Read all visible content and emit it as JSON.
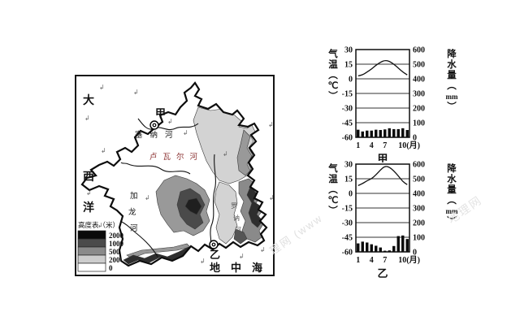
{
  "map": {
    "ocean_chars": [
      "大",
      "西",
      "洋"
    ],
    "sea_label": "地中海",
    "cities": {
      "jia": "甲",
      "yi": "乙"
    },
    "rivers": {
      "seine": "塞纳河",
      "loire": "卢瓦尔河",
      "loire_color": "#8b3232",
      "garonne_chars": [
        "加",
        "龙",
        "河"
      ],
      "rhone_chars": [
        "罗",
        "讷",
        "河"
      ]
    },
    "legend": {
      "title": "高度表（米）",
      "entries": [
        {
          "label": "2000",
          "color": "#0a0a0a"
        },
        {
          "label": "1000",
          "color": "#4a4a4a"
        },
        {
          "label": "500",
          "color": "#8a8a8a"
        },
        {
          "label": "200",
          "color": "#cdcdcd"
        },
        {
          "label": "0",
          "color": "#ffffff"
        }
      ]
    },
    "wave_mark": "↲"
  },
  "watermark": {
    "frag1": "理网 (www",
    "frag2": "地理网"
  },
  "chart_data": [
    {
      "type": "line+bar",
      "title": "甲",
      "temp_axis_label_chars": [
        "气",
        "温",
        "︵",
        "℃",
        "︶"
      ],
      "precip_axis_label_chars": [
        "降",
        "水",
        "量",
        "︵",
        "mm",
        "︶"
      ],
      "temp_ticks": [
        30,
        15,
        0,
        -15,
        -30,
        -45,
        -60
      ],
      "precip_ticks": [
        600,
        500,
        400,
        300,
        200,
        100,
        0
      ],
      "temp_range": [
        -60,
        30
      ],
      "precip_range": [
        0,
        600
      ],
      "x_tick_months": [
        1,
        4,
        7,
        10
      ],
      "x_tick_labels": [
        "1",
        "4",
        "7",
        "10(月)"
      ],
      "months": [
        1,
        2,
        3,
        4,
        5,
        6,
        7,
        8,
        9,
        10,
        11,
        12
      ],
      "temperature_c": [
        3,
        4,
        7,
        10,
        14,
        17,
        19,
        18,
        15,
        11,
        7,
        4
      ],
      "precipitation_mm": [
        52,
        40,
        46,
        46,
        52,
        50,
        54,
        62,
        56,
        56,
        62,
        50
      ],
      "line_color": "#111111",
      "bar_color": "#0a0a0a"
    },
    {
      "type": "line+bar",
      "title": "乙",
      "temp_axis_label_chars": [
        "气",
        "温",
        "︵",
        "℃",
        "︶"
      ],
      "precip_axis_label_chars": [
        "降",
        "水",
        "量",
        "︵",
        "mm",
        "︶"
      ],
      "temp_ticks": [
        30,
        15,
        0,
        -15,
        -30,
        -45,
        -60
      ],
      "precip_ticks": [
        600,
        500,
        400,
        300,
        200,
        100,
        0
      ],
      "temp_range": [
        -60,
        30
      ],
      "precip_range": [
        0,
        600
      ],
      "x_tick_months": [
        1,
        4,
        7,
        10
      ],
      "x_tick_labels": [
        "1",
        "4",
        "7",
        "10(月)"
      ],
      "months": [
        1,
        2,
        3,
        4,
        5,
        6,
        7,
        8,
        9,
        10,
        11,
        12
      ],
      "temperature_c": [
        8,
        10,
        13,
        15,
        19,
        24,
        28,
        27,
        23,
        18,
        12,
        9
      ],
      "precipitation_mm": [
        58,
        70,
        64,
        52,
        42,
        30,
        8,
        10,
        40,
        108,
        112,
        88
      ],
      "line_color": "#111111",
      "bar_color": "#0a0a0a"
    }
  ]
}
